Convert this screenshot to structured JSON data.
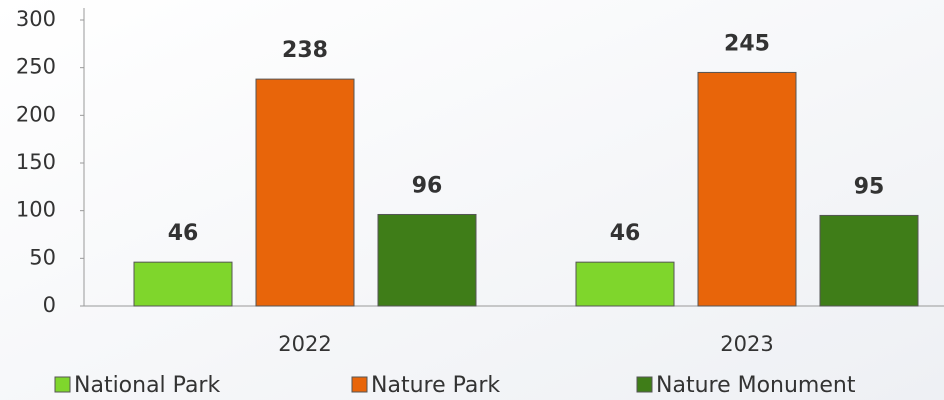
{
  "chart_data": {
    "type": "bar",
    "categories": [
      "2022",
      "2023"
    ],
    "series": [
      {
        "name": "National Park",
        "color": "#7fd62c",
        "values": [
          46,
          46
        ]
      },
      {
        "name": "Nature Park",
        "color": "#e8650a",
        "values": [
          238,
          245
        ]
      },
      {
        "name": "Nature Monument",
        "color": "#3f7d18",
        "values": [
          96,
          95
        ]
      }
    ],
    "ylim": [
      0,
      300
    ],
    "yticks": [
      0,
      50,
      100,
      150,
      200,
      250,
      300
    ],
    "legend": "bottom"
  }
}
